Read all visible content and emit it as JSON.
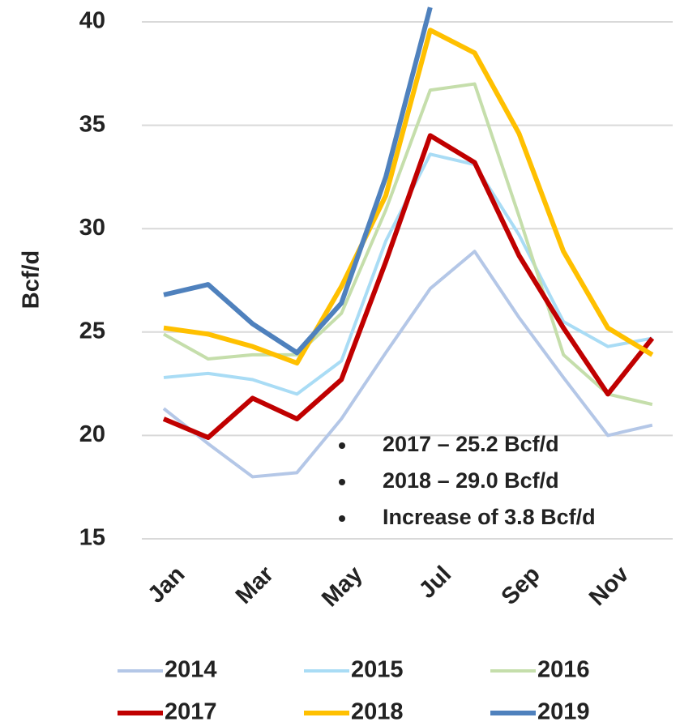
{
  "chart_data": {
    "type": "line",
    "y_label": "Bcf/d",
    "categories": [
      "Jan",
      null,
      "Mar",
      null,
      "May",
      null,
      "Jul",
      null,
      "Sep",
      null,
      "Nov",
      null
    ],
    "series": [
      {
        "name": "2014",
        "color": "#b4c7e7",
        "values": [
          21.3,
          19.6,
          18.0,
          18.2,
          20.8,
          24.0,
          27.1,
          28.9,
          25.7,
          22.8,
          20.0,
          20.5
        ]
      },
      {
        "name": "2015",
        "color": "#a9dcf5",
        "values": [
          22.8,
          23.0,
          22.7,
          22.0,
          23.6,
          29.4,
          33.6,
          33.1,
          29.7,
          25.5,
          24.3,
          24.7
        ]
      },
      {
        "name": "2016",
        "color": "#c5deab",
        "values": [
          24.9,
          23.7,
          23.9,
          23.9,
          25.9,
          30.9,
          36.7,
          37.0,
          30.6,
          23.9,
          22.0,
          21.5
        ]
      },
      {
        "name": "2017",
        "color": "#c00000",
        "values": [
          20.8,
          19.9,
          21.8,
          20.8,
          22.7,
          28.4,
          34.5,
          33.2,
          28.7,
          25.2,
          22.0,
          24.7
        ]
      },
      {
        "name": "2018",
        "color": "#ffc000",
        "values": [
          25.2,
          24.9,
          24.3,
          23.5,
          27.2,
          31.6,
          39.6,
          38.5,
          34.6,
          28.9,
          25.2,
          23.9
        ]
      },
      {
        "name": "2019",
        "color": "#4f81bd",
        "values": [
          26.8,
          27.3,
          25.4,
          24.0,
          26.4,
          32.5,
          40.7,
          null,
          null,
          null,
          null,
          null
        ]
      }
    ],
    "ylim": [
      15,
      40
    ],
    "yticks": [
      15,
      20,
      25,
      30,
      35,
      40
    ],
    "grid": true,
    "legend": "bottom",
    "annotations": [
      "2017 – 25.2 Bcf/d",
      "2018 – 29.0 Bcf/d",
      "Increase of 3.8 Bcf/d"
    ]
  }
}
